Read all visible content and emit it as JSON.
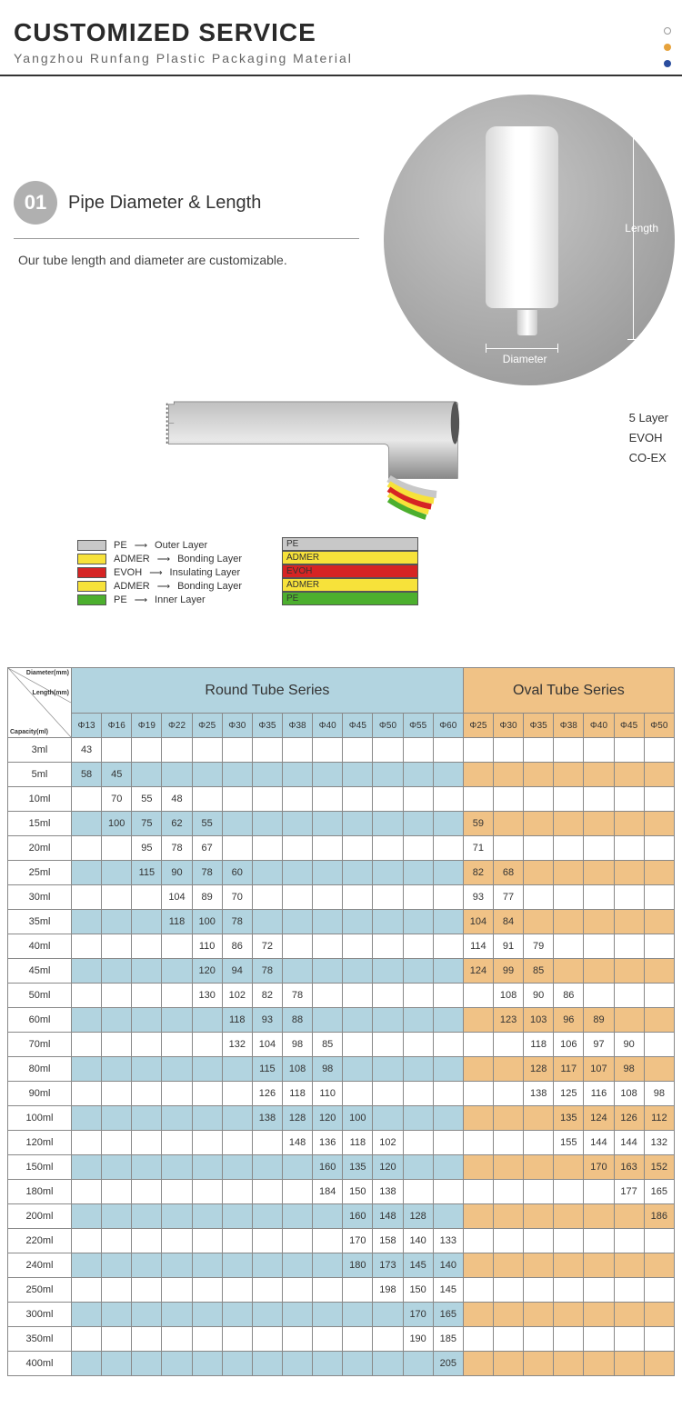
{
  "header": {
    "title": "CUSTOMIZED SERVICE",
    "subtitle": "Yangzhou Runfang Plastic Packaging Material"
  },
  "dots_colors": [
    "#ffffff",
    "#e6a23c",
    "#2a4d9e"
  ],
  "section1": {
    "number": "01",
    "title": "Pipe Diameter & Length",
    "desc": "Our tube length and diameter are customizable.",
    "length_label": "Length",
    "diameter_label": "Diameter"
  },
  "layerdiag": {
    "side_labels": [
      "5 Layer",
      "EVOH",
      "CO-EX"
    ],
    "legend": [
      {
        "color": "#c8c8c8",
        "name": "PE",
        "desc": "Outer Layer"
      },
      {
        "color": "#f7e23a",
        "name": "ADMER",
        "desc": "Bonding Layer"
      },
      {
        "color": "#d62424",
        "name": "EVOH",
        "desc": "Insulating Layer"
      },
      {
        "color": "#f7e23a",
        "name": "ADMER",
        "desc": "Bonding Layer"
      },
      {
        "color": "#4caf2e",
        "name": "PE",
        "desc": "Inner Layer"
      }
    ],
    "stack": [
      {
        "name": "PE",
        "bg": "#c8c8c8"
      },
      {
        "name": "ADMER",
        "bg": "#f7e23a"
      },
      {
        "name": "EVOH",
        "bg": "#d62424"
      },
      {
        "name": "ADMER",
        "bg": "#f7e23a"
      },
      {
        "name": "PE",
        "bg": "#4caf2e"
      }
    ]
  },
  "table": {
    "corner_labels": [
      "Diameter(mm)",
      "Length(mm)",
      "Capacity(ml)"
    ],
    "series": [
      {
        "name": "Round Tube Series",
        "class": "round-hdr",
        "cols": 13
      },
      {
        "name": "Oval Tube Series",
        "class": "oval-hdr",
        "cols": 7
      }
    ],
    "round_diams": [
      "Φ13",
      "Φ16",
      "Φ19",
      "Φ22",
      "Φ25",
      "Φ30",
      "Φ35",
      "Φ38",
      "Φ40",
      "Φ45",
      "Φ50",
      "Φ55",
      "Φ60"
    ],
    "oval_diams": [
      "Φ25",
      "Φ30",
      "Φ35",
      "Φ38",
      "Φ40",
      "Φ45",
      "Φ50"
    ],
    "capacities": [
      "3ml",
      "5ml",
      "10ml",
      "15ml",
      "20ml",
      "25ml",
      "30ml",
      "35ml",
      "40ml",
      "45ml",
      "50ml",
      "60ml",
      "70ml",
      "80ml",
      "90ml",
      "100ml",
      "120ml",
      "150ml",
      "180ml",
      "200ml",
      "220ml",
      "240ml",
      "250ml",
      "300ml",
      "350ml",
      "400ml"
    ],
    "round_data": {
      "3ml": {
        "Φ13": "43"
      },
      "5ml": {
        "Φ13": "58",
        "Φ16": "45"
      },
      "10ml": {
        "Φ16": "70",
        "Φ19": "55",
        "Φ22": "48"
      },
      "15ml": {
        "Φ16": "100",
        "Φ19": "75",
        "Φ22": "62",
        "Φ25": "55"
      },
      "20ml": {
        "Φ19": "95",
        "Φ22": "78",
        "Φ25": "67"
      },
      "25ml": {
        "Φ19": "115",
        "Φ22": "90",
        "Φ25": "78",
        "Φ30": "60"
      },
      "30ml": {
        "Φ22": "104",
        "Φ25": "89",
        "Φ30": "70"
      },
      "35ml": {
        "Φ22": "118",
        "Φ25": "100",
        "Φ30": "78"
      },
      "40ml": {
        "Φ25": "110",
        "Φ30": "86",
        "Φ35": "72"
      },
      "45ml": {
        "Φ25": "120",
        "Φ30": "94",
        "Φ35": "78"
      },
      "50ml": {
        "Φ25": "130",
        "Φ30": "102",
        "Φ35": "82",
        "Φ38": "78"
      },
      "60ml": {
        "Φ30": "118",
        "Φ35": "93",
        "Φ38": "88"
      },
      "70ml": {
        "Φ30": "132",
        "Φ35": "104",
        "Φ38": "98",
        "Φ40": "85"
      },
      "80ml": {
        "Φ35": "115",
        "Φ38": "108",
        "Φ40": "98"
      },
      "90ml": {
        "Φ35": "126",
        "Φ38": "118",
        "Φ40": "110"
      },
      "100ml": {
        "Φ35": "138",
        "Φ38": "128",
        "Φ40": "120",
        "Φ45": "100"
      },
      "120ml": {
        "Φ38": "148",
        "Φ40": "136",
        "Φ45": "118",
        "Φ50": "102"
      },
      "150ml": {
        "Φ40": "160",
        "Φ45": "135",
        "Φ50": "120"
      },
      "180ml": {
        "Φ40": "184",
        "Φ45": "150",
        "Φ50": "138"
      },
      "200ml": {
        "Φ45": "160",
        "Φ50": "148",
        "Φ55": "128"
      },
      "220ml": {
        "Φ45": "170",
        "Φ50": "158",
        "Φ55": "140",
        "Φ60": "133"
      },
      "240ml": {
        "Φ45": "180",
        "Φ50": "173",
        "Φ55": "145",
        "Φ60": "140"
      },
      "250ml": {
        "Φ50": "198",
        "Φ55": "150",
        "Φ60": "145"
      },
      "300ml": {
        "Φ55": "170",
        "Φ60": "165"
      },
      "350ml": {
        "Φ55": "190",
        "Φ60": "185"
      },
      "400ml": {
        "Φ60": "205"
      }
    },
    "oval_data": {
      "15ml": {
        "Φ25": "59"
      },
      "20ml": {
        "Φ25": "71"
      },
      "25ml": {
        "Φ25": "82",
        "Φ30": "68"
      },
      "30ml": {
        "Φ25": "93",
        "Φ30": "77"
      },
      "35ml": {
        "Φ25": "104",
        "Φ30": "84"
      },
      "40ml": {
        "Φ25": "114",
        "Φ30": "91",
        "Φ35": "79"
      },
      "45ml": {
        "Φ25": "124",
        "Φ30": "99",
        "Φ35": "85"
      },
      "50ml": {
        "Φ30": "108",
        "Φ35": "90",
        "Φ38": "86"
      },
      "60ml": {
        "Φ30": "123",
        "Φ35": "103",
        "Φ38": "96",
        "Φ40": "89"
      },
      "70ml": {
        "Φ35": "118",
        "Φ38": "106",
        "Φ40": "97",
        "Φ45": "90"
      },
      "80ml": {
        "Φ35": "128",
        "Φ38": "117",
        "Φ40": "107",
        "Φ45": "98"
      },
      "90ml": {
        "Φ35": "138",
        "Φ38": "125",
        "Φ40": "116",
        "Φ45": "108",
        "Φ50": "98"
      },
      "100ml": {
        "Φ38": "135",
        "Φ40": "124",
        "Φ45": "126",
        "Φ50": "112"
      },
      "120ml": {
        "Φ38": "155",
        "Φ40": "144",
        "Φ45": "144",
        "Φ50": "132"
      },
      "150ml": {
        "Φ40": "170",
        "Φ45": "163",
        "Φ50": "152"
      },
      "180ml": {
        "Φ45": "177",
        "Φ50": "165"
      },
      "200ml": {
        "Φ50": "186"
      }
    },
    "colors": {
      "round_shade": "#b2d4e0",
      "oval_shade": "#f0c286",
      "border": "#888888"
    }
  }
}
